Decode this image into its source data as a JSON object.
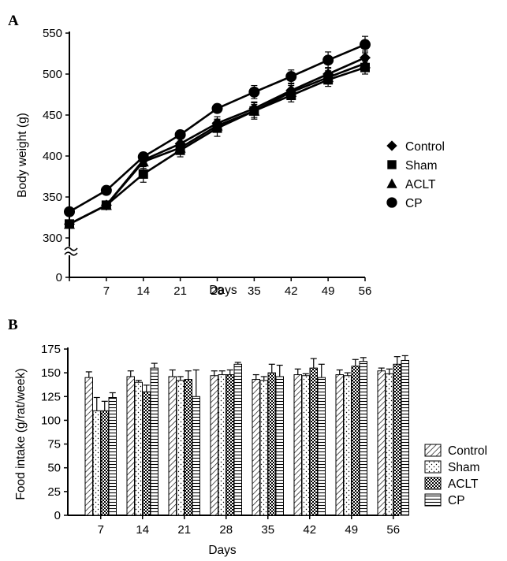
{
  "panels": {
    "a": {
      "letter": "A",
      "xlabel": "Days",
      "ylabel": "Body weight (g)",
      "legend": [
        {
          "label": "Control",
          "marker": "diamond"
        },
        {
          "label": "Sham",
          "marker": "square"
        },
        {
          "label": "ACLT",
          "marker": "triangle"
        },
        {
          "label": "CP",
          "marker": "circle"
        }
      ]
    },
    "b": {
      "letter": "B",
      "xlabel": "Days",
      "ylabel": "Food intake (g/rat/week)",
      "legend": [
        {
          "label": "Control",
          "pattern": "diagonal"
        },
        {
          "label": "Sham",
          "pattern": "dots"
        },
        {
          "label": "ACLT",
          "pattern": "checker"
        },
        {
          "label": "CP",
          "pattern": "horizontal"
        }
      ]
    }
  },
  "chart_data": [
    {
      "type": "line",
      "panel": "A",
      "xlabel": "Days",
      "ylabel": "Body weight (g)",
      "x": [
        0,
        7,
        14,
        21,
        28,
        35,
        42,
        49,
        56
      ],
      "x_tick_labels": [
        "7",
        "14",
        "21",
        "28",
        "35",
        "42",
        "49",
        "56"
      ],
      "y_ticks": [
        0,
        300,
        350,
        400,
        450,
        500,
        550
      ],
      "axis_break": "between 0 and 300",
      "ylim": [
        0,
        550
      ],
      "legend_position": "right",
      "series": [
        {
          "name": "Control",
          "marker": "diamond",
          "values": [
            317,
            340,
            395,
            415,
            440,
            458,
            480,
            500,
            520
          ],
          "errors": [
            5,
            5,
            8,
            8,
            8,
            8,
            8,
            8,
            8
          ]
        },
        {
          "name": "Sham",
          "marker": "square",
          "values": [
            317,
            340,
            378,
            407,
            434,
            455,
            474,
            493,
            508
          ],
          "errors": [
            5,
            5,
            10,
            8,
            10,
            10,
            8,
            8,
            8
          ]
        },
        {
          "name": "ACLT",
          "marker": "triangle",
          "values": [
            317,
            340,
            393,
            410,
            437,
            455,
            478,
            496,
            513
          ],
          "errors": [
            5,
            5,
            8,
            8,
            8,
            8,
            8,
            8,
            8
          ]
        },
        {
          "name": "CP",
          "marker": "circle",
          "values": [
            332,
            358,
            399,
            426,
            458,
            478,
            497,
            517,
            536
          ],
          "errors": [
            5,
            5,
            5,
            5,
            5,
            8,
            8,
            10,
            10
          ]
        }
      ]
    },
    {
      "type": "bar",
      "panel": "B",
      "xlabel": "Days",
      "ylabel": "Food intake (g/rat/week)",
      "categories": [
        "7",
        "14",
        "21",
        "28",
        "35",
        "42",
        "49",
        "56"
      ],
      "y_ticks": [
        0,
        25,
        50,
        75,
        100,
        125,
        150,
        175
      ],
      "ylim": [
        0,
        175
      ],
      "legend_position": "right",
      "series": [
        {
          "name": "Control",
          "pattern": "diagonal",
          "values": [
            145,
            146,
            146,
            147,
            143,
            148,
            148,
            152
          ],
          "errors": [
            6,
            6,
            7,
            5,
            5,
            6,
            5,
            3
          ]
        },
        {
          "name": "Sham",
          "pattern": "dots",
          "values": [
            110,
            140,
            142,
            148,
            142,
            147,
            147,
            149
          ],
          "errors": [
            14,
            2,
            4,
            4,
            4,
            2,
            3,
            5
          ]
        },
        {
          "name": "ACLT",
          "pattern": "checker",
          "values": [
            110,
            130,
            143,
            148,
            150,
            155,
            157,
            159
          ],
          "errors": [
            10,
            7,
            9,
            5,
            9,
            10,
            7,
            8
          ]
        },
        {
          "name": "CP",
          "pattern": "horizontal",
          "values": [
            124,
            155,
            125,
            159,
            146,
            145,
            162,
            163
          ],
          "errors": [
            5,
            5,
            28,
            2,
            12,
            14,
            4,
            5
          ]
        }
      ]
    }
  ]
}
